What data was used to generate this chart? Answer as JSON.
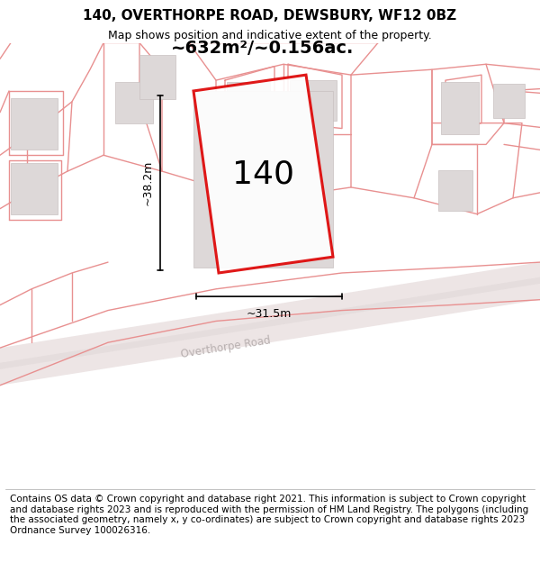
{
  "title": "140, OVERTHORPE ROAD, DEWSBURY, WF12 0BZ",
  "subtitle": "Map shows position and indicative extent of the property.",
  "footer": "Contains OS data © Crown copyright and database right 2021. This information is subject to Crown copyright and database rights 2023 and is reproduced with the permission of HM Land Registry. The polygons (including the associated geometry, namely x, y co-ordinates) are subject to Crown copyright and database rights 2023 Ordnance Survey 100026316.",
  "area_text": "~632m²/~0.156ac.",
  "width_text": "~31.5m",
  "height_text": "~38.2m",
  "label_140": "140",
  "road_label": "Overthorpe Road",
  "map_bg": "#f5eeee",
  "plot_border_color": "#dd0000",
  "building_fill": "#ddd8d8",
  "building_stroke": "#c8c0c0",
  "pink": "#e89090",
  "dim_line_color": "#111111",
  "title_fontsize": 11,
  "subtitle_fontsize": 9,
  "footer_fontsize": 7.5,
  "road_fill": "#ede5e5",
  "road_center_fill": "#e0d8d8"
}
